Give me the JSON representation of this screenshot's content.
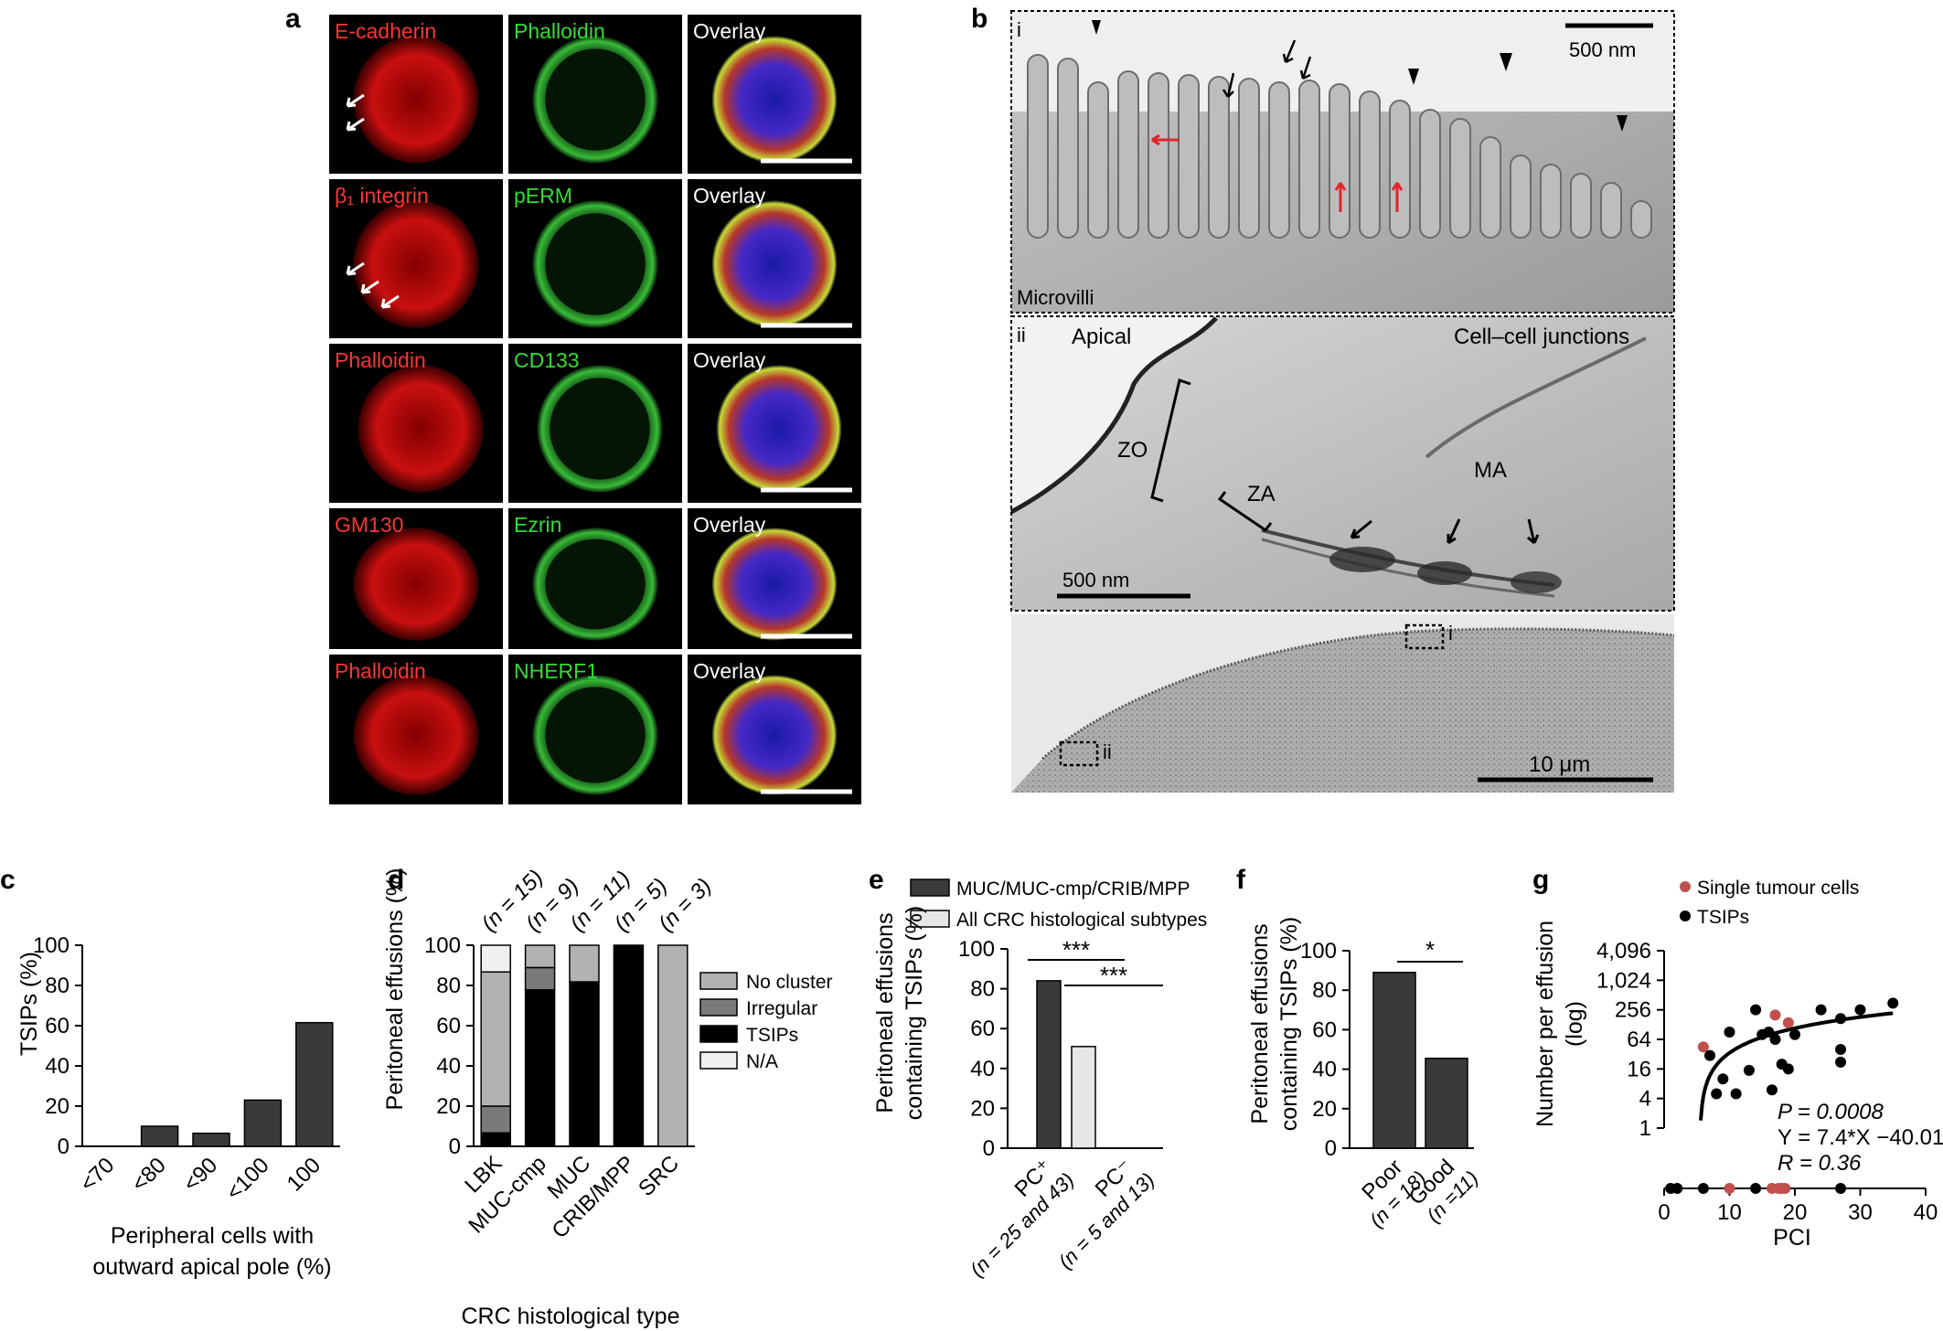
{
  "panel_a": {
    "letter": "a",
    "rows": [
      {
        "red": "E-cadherin",
        "green": "Phalloidin",
        "overlay": "Overlay"
      },
      {
        "red": "β₁ integrin",
        "green": "pERM",
        "overlay": "Overlay"
      },
      {
        "red": "Phalloidin",
        "green": "CD133",
        "overlay": "Overlay"
      },
      {
        "red": "GM130",
        "green": "Ezrin",
        "overlay": "Overlay"
      },
      {
        "red": "Phalloidin",
        "green": "NHERF1",
        "overlay": "Overlay"
      }
    ]
  },
  "panel_b": {
    "letter": "b",
    "sub_i": "i",
    "sub_ii": "ii",
    "scale_i": "500 nm",
    "label_microvilli": "Microvilli",
    "label_apical": "Apical",
    "label_junctions": "Cell–cell junctions",
    "label_zo": "ZO",
    "label_za": "ZA",
    "label_ma": "MA",
    "scale_ii": "500 nm",
    "inset_i": "i",
    "inset_ii": "ii",
    "scale_iii": "10 μm"
  },
  "chart_data": [
    {
      "panel": "c",
      "type": "bar",
      "categories": [
        "<70",
        "<80",
        "<90",
        "<100",
        "100"
      ],
      "values": [
        0,
        10,
        6.5,
        23,
        61.5
      ],
      "ylabel": "TSIPs (%)",
      "xlabel_line1": "Peripheral cells with",
      "xlabel_line2": "outward apical pole (%)",
      "ylim": [
        0,
        100
      ],
      "yticks": [
        "0",
        "20",
        "40",
        "60",
        "80",
        "100"
      ],
      "bar_color": "#3a3a3a"
    },
    {
      "panel": "d",
      "type": "bar",
      "stacked": true,
      "categories": [
        "LBK",
        "MUC-cmp",
        "MUC",
        "CRIB/MPP",
        "SRC"
      ],
      "n_labels": [
        "(n = 15)",
        "(n = 9)",
        "(n = 11)",
        "(n = 5)",
        "(n = 3)"
      ],
      "series": [
        {
          "name": "TSIPs",
          "values": [
            6.7,
            77.8,
            81.8,
            100,
            0
          ],
          "color": "#000000"
        },
        {
          "name": "Irregular",
          "values": [
            13.3,
            11.1,
            0,
            0,
            0
          ],
          "color": "#7a7a7a"
        },
        {
          "name": "No cluster",
          "values": [
            66.7,
            11.1,
            18.2,
            0,
            100
          ],
          "color": "#b2b2b2"
        },
        {
          "name": "N/A",
          "values": [
            13.3,
            0,
            0,
            0,
            0
          ],
          "color": "#f0f0f0"
        }
      ],
      "legend_order": [
        "No cluster",
        "Irregular",
        "TSIPs",
        "N/A"
      ],
      "ylabel": "Peritoneal effusions (%)",
      "xlabel": "CRC histological type",
      "ylim": [
        0,
        100
      ],
      "yticks": [
        "0",
        "20",
        "40",
        "60",
        "80",
        "100"
      ]
    },
    {
      "panel": "e",
      "type": "bar",
      "categories": [
        "PC⁺",
        "PC⁻"
      ],
      "category_sub": [
        "(n = 25 and 43)",
        "(n = 5 and 13)"
      ],
      "series": [
        {
          "name": "MUC/MUC-cmp/CRIB/MPP",
          "values": [
            84,
            0
          ],
          "color": "#3a3a3a"
        },
        {
          "name": "All CRC histological subtypes",
          "values": [
            51,
            0
          ],
          "color": "#e6e6e6"
        }
      ],
      "ylabel_line1": "Peritoneal effusions",
      "ylabel_line2": "containing TSIPs (%)",
      "ylim": [
        0,
        100
      ],
      "yticks": [
        "0",
        "20",
        "40",
        "60",
        "80",
        "100"
      ],
      "sig1": "***",
      "sig2": "***"
    },
    {
      "panel": "f",
      "type": "bar",
      "categories": [
        "Poor",
        "Good"
      ],
      "category_sub": [
        "(n = 18)",
        "(n =11)"
      ],
      "values": [
        89,
        45.5
      ],
      "ylabel_line1": "Peritoneal effusions",
      "ylabel_line2": "containing TSIPs (%)",
      "ylim": [
        0,
        100
      ],
      "yticks": [
        "0",
        "20",
        "40",
        "60",
        "80",
        "100"
      ],
      "sig": "*",
      "bar_color": "#3a3a3a"
    },
    {
      "panel": "g",
      "type": "scatter",
      "xlabel": "PCI",
      "ylabel_line1": "Number per effusion",
      "ylabel_line2": "(log)",
      "xlim": [
        0,
        40
      ],
      "xticks": [
        "0",
        "10",
        "20",
        "30",
        "40"
      ],
      "yticks": [
        "1",
        "4",
        "16",
        "64",
        "256",
        "1,024",
        "4,096"
      ],
      "series": [
        {
          "name": "Single tumour cells",
          "color": "#c0504d",
          "points": [
            [
              6,
              45
            ],
            [
              17,
              200
            ],
            [
              19,
              140
            ],
            [
              10,
              0
            ],
            [
              16.5,
              0
            ],
            [
              17.5,
              0
            ],
            [
              18,
              0
            ],
            [
              18.5,
              0
            ]
          ]
        },
        {
          "name": "TSIPs",
          "color": "#000000",
          "points": [
            [
              1,
              0
            ],
            [
              2,
              0
            ],
            [
              6,
              0
            ],
            [
              14,
              0
            ],
            [
              27,
              0
            ],
            [
              7,
              30
            ],
            [
              8,
              5
            ],
            [
              9,
              10
            ],
            [
              10,
              90
            ],
            [
              11,
              5
            ],
            [
              13,
              15
            ],
            [
              14,
              256
            ],
            [
              15,
              80
            ],
            [
              16,
              90
            ],
            [
              16.5,
              6
            ],
            [
              17,
              64
            ],
            [
              18,
              20
            ],
            [
              19,
              16
            ],
            [
              20,
              80
            ],
            [
              24,
              256
            ],
            [
              27,
              170
            ],
            [
              27,
              40
            ],
            [
              27,
              22
            ],
            [
              30,
              256
            ],
            [
              35,
              350
            ]
          ]
        }
      ],
      "fit": {
        "a": 7.4,
        "b": -40.01
      },
      "stats_p": "P = 0.0008",
      "stats_eq": "Y = 7.4*X −40.01",
      "stats_r": "R = 0.36"
    }
  ]
}
